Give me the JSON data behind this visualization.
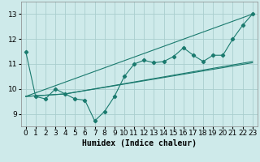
{
  "xlabel": "Humidex (Indice chaleur)",
  "background_color": "#ceeaea",
  "grid_color": "#aacece",
  "line_color": "#1a7a6e",
  "xlim": [
    -0.5,
    23.5
  ],
  "ylim": [
    8.5,
    13.5
  ],
  "yticks": [
    9,
    10,
    11,
    12,
    13
  ],
  "xticks": [
    0,
    1,
    2,
    3,
    4,
    5,
    6,
    7,
    8,
    9,
    10,
    11,
    12,
    13,
    14,
    15,
    16,
    17,
    18,
    19,
    20,
    21,
    22,
    23
  ],
  "series_main": [
    11.5,
    9.7,
    9.6,
    10.0,
    9.8,
    9.6,
    9.55,
    8.72,
    9.1,
    9.7,
    10.5,
    11.0,
    11.15,
    11.05,
    11.1,
    11.3,
    11.65,
    11.35,
    11.1,
    11.35,
    11.35,
    12.0,
    12.55,
    13.0
  ],
  "series_line1": [
    [
      0,
      9.7
    ],
    [
      23,
      13.0
    ]
  ],
  "series_line2": [
    [
      0,
      9.7
    ],
    [
      4,
      9.8
    ],
    [
      23,
      11.1
    ]
  ],
  "series_line3": [
    [
      0,
      9.7
    ],
    [
      4,
      9.8
    ],
    [
      23,
      11.05
    ]
  ],
  "font_size_xlabel": 7,
  "font_size_ticks": 6.5
}
